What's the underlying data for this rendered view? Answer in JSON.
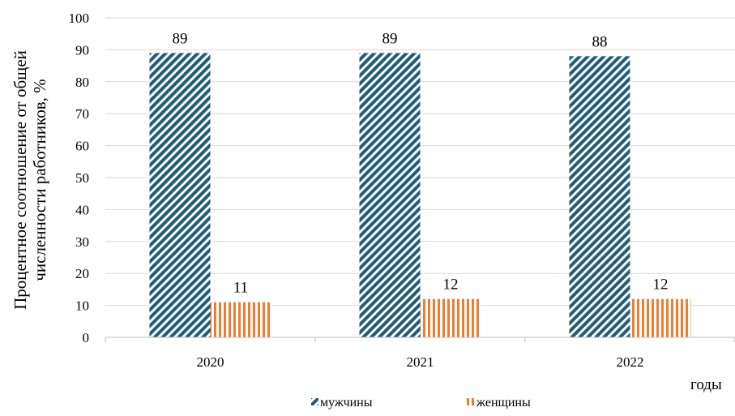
{
  "chart_data": {
    "type": "bar",
    "categories": [
      "2020",
      "2021",
      "2022"
    ],
    "series": [
      {
        "name": "мужчины",
        "values": [
          89,
          89,
          88
        ],
        "color": "#1f5c7a",
        "pattern": "diagonal-stripes"
      },
      {
        "name": "женщины",
        "values": [
          11,
          12,
          12
        ],
        "color": "#ed7d31",
        "pattern": "vertical-stripes"
      }
    ],
    "data_labels": [
      [
        "89",
        "89",
        "88"
      ],
      [
        "11",
        "12",
        "12"
      ]
    ],
    "ylabel_line1": "Процентное соотношение от общей",
    "ylabel_line2": "численности работников, %",
    "xlabel": "годы",
    "ylim": [
      0,
      100
    ],
    "yticks": [
      0,
      10,
      20,
      30,
      40,
      50,
      60,
      70,
      80,
      90,
      100
    ],
    "grid": true,
    "legend_position": "bottom"
  }
}
